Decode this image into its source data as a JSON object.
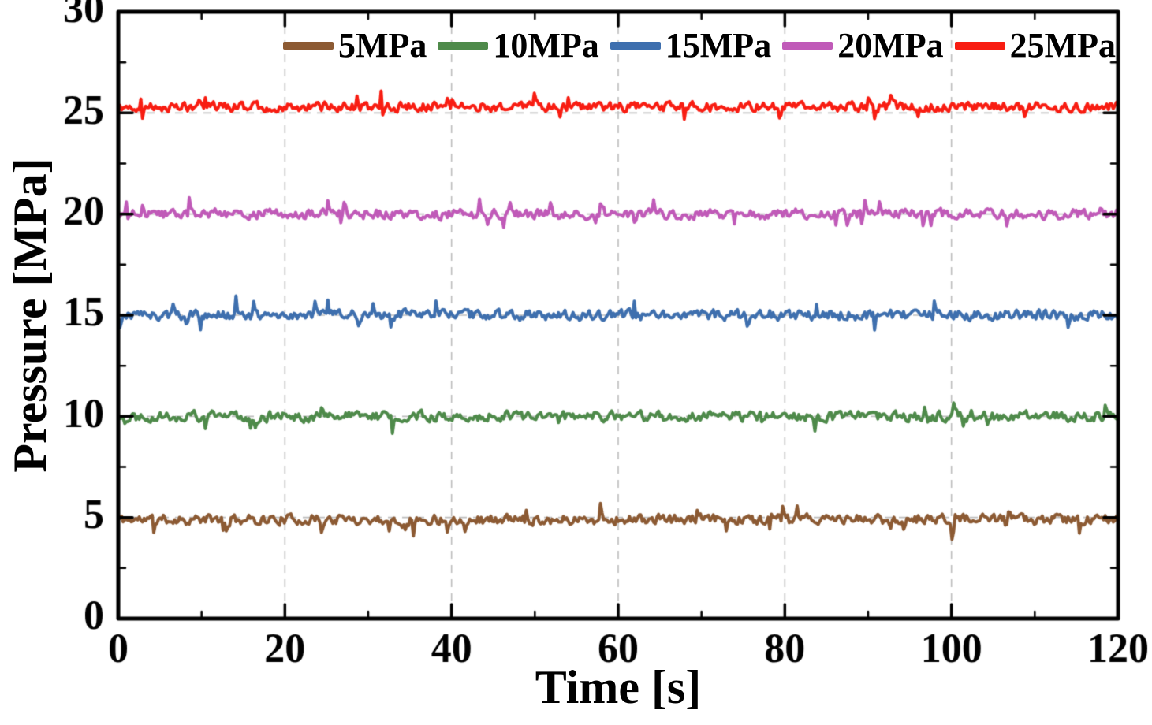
{
  "figure": {
    "background": "#ffffff",
    "axis_color": "#000000",
    "grid_color": "#bdbdbd",
    "grid_dash": [
      10,
      8
    ]
  },
  "chart_data": {
    "type": "line",
    "title": "",
    "xlabel": "Time [s]",
    "ylabel": "Pressure [MPa]",
    "xlim": [
      0,
      120
    ],
    "ylim": [
      0,
      30
    ],
    "xticks": [
      0,
      20,
      40,
      60,
      80,
      100,
      120
    ],
    "yticks": [
      0,
      5,
      10,
      15,
      20,
      25,
      30
    ],
    "x_minor_step": 10,
    "y_minor_step": 2.5,
    "grid": true,
    "legend_position": "top-center",
    "samples_per_series": 620,
    "description": "Five constant-pressure traces with measurement noise over 120 s",
    "series": [
      {
        "label": "5MPa",
        "color": "#8c5a33",
        "mean": 4.9,
        "noise_amplitude": 0.35,
        "seed": 11
      },
      {
        "label": "10MPa",
        "color": "#4e8a4a",
        "mean": 10.0,
        "noise_amplitude": 0.35,
        "seed": 22
      },
      {
        "label": "15MPa",
        "color": "#3e6fae",
        "mean": 15.0,
        "noise_amplitude": 0.35,
        "seed": 33
      },
      {
        "label": "20MPa",
        "color": "#c05ab8",
        "mean": 20.0,
        "noise_amplitude": 0.35,
        "seed": 44
      },
      {
        "label": "25MPa",
        "color": "#f81d12",
        "mean": 25.3,
        "noise_amplitude": 0.33,
        "seed": 55
      }
    ]
  }
}
